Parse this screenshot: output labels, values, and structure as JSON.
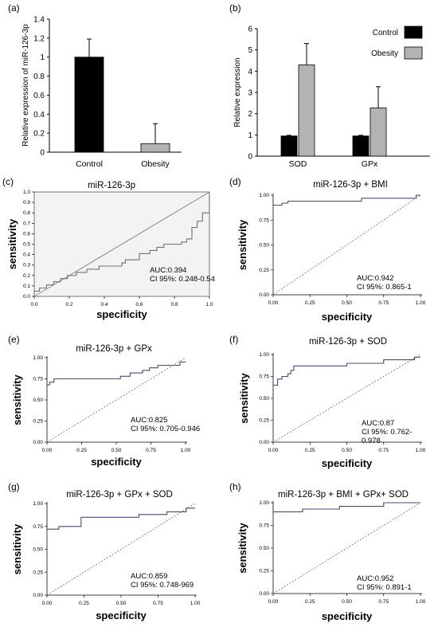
{
  "panels": {
    "a": {
      "label": "(a)"
    },
    "b": {
      "label": "(b)"
    },
    "c": {
      "label": "(c)"
    },
    "d": {
      "label": "(d)"
    },
    "e": {
      "label": "(e)"
    },
    "f": {
      "label": "(f)"
    },
    "g": {
      "label": "(g)"
    },
    "h": {
      "label": "(h)"
    }
  },
  "roc_common": {
    "xlabel": "specificity",
    "ylabel": "sensitivity"
  },
  "colors": {
    "control": "#000000",
    "obesity": "#b3b3b3",
    "roc_line": "#4a4a7a",
    "diag_line": "#7a7a7a",
    "panel_c_bg": "#f3f3f3"
  },
  "chart_data": [
    {
      "panel": "a",
      "type": "bar",
      "categories": [
        "Control",
        "Obesity"
      ],
      "values": [
        1.0,
        0.09
      ],
      "errors": [
        0.19,
        0.21
      ],
      "colors": [
        "#000000",
        "#b3b3b3"
      ],
      "ylabel": "Relative expression of  miR-126-3p",
      "ylim": [
        0,
        1.4
      ],
      "yticks": [
        "0",
        "0.2",
        "0.4",
        "0.6",
        "0.8",
        "1",
        "1.2",
        "1.4"
      ]
    },
    {
      "panel": "b",
      "type": "bar",
      "categories": [
        "SOD",
        "GPx"
      ],
      "series": [
        {
          "name": "Control",
          "values": [
            0.95,
            0.95
          ],
          "errors": [
            0.03,
            0.03
          ],
          "color": "#000000"
        },
        {
          "name": "Obesity",
          "values": [
            4.3,
            2.27
          ],
          "errors": [
            1.0,
            1.0
          ],
          "color": "#b3b3b3"
        }
      ],
      "ylabel": "Relative expression",
      "ylim": [
        0,
        6
      ],
      "yticks": [
        "0",
        "1",
        "2",
        "3",
        "4",
        "5",
        "6"
      ],
      "legend": "top-right"
    },
    {
      "panel": "c",
      "type": "line",
      "title": "miR-126-3p",
      "xticks": [
        "0.0",
        "0.2",
        "0.4",
        "0.6",
        "0.8",
        "1.0"
      ],
      "yticks": [
        "0.0",
        "0.1",
        "0.2",
        "0.3",
        "0.4",
        "0.5",
        "0.6",
        "0.7",
        "0.8",
        "0.9",
        "1.0"
      ],
      "points": [
        [
          0,
          0
        ],
        [
          0,
          0.05
        ],
        [
          0.03,
          0.05
        ],
        [
          0.03,
          0.08
        ],
        [
          0.07,
          0.08
        ],
        [
          0.07,
          0.11
        ],
        [
          0.11,
          0.11
        ],
        [
          0.11,
          0.14
        ],
        [
          0.15,
          0.14
        ],
        [
          0.15,
          0.17
        ],
        [
          0.19,
          0.17
        ],
        [
          0.19,
          0.2
        ],
        [
          0.24,
          0.2
        ],
        [
          0.24,
          0.23
        ],
        [
          0.3,
          0.23
        ],
        [
          0.3,
          0.26
        ],
        [
          0.37,
          0.26
        ],
        [
          0.37,
          0.29
        ],
        [
          0.5,
          0.29
        ],
        [
          0.5,
          0.32
        ],
        [
          0.52,
          0.32
        ],
        [
          0.52,
          0.35
        ],
        [
          0.6,
          0.35
        ],
        [
          0.6,
          0.41
        ],
        [
          0.66,
          0.41
        ],
        [
          0.66,
          0.44
        ],
        [
          0.7,
          0.44
        ],
        [
          0.7,
          0.47
        ],
        [
          0.74,
          0.47
        ],
        [
          0.74,
          0.5
        ],
        [
          0.84,
          0.5
        ],
        [
          0.84,
          0.52
        ],
        [
          0.87,
          0.52
        ],
        [
          0.87,
          0.55
        ],
        [
          0.9,
          0.55
        ],
        [
          0.9,
          0.66
        ],
        [
          0.93,
          0.66
        ],
        [
          0.93,
          0.72
        ],
        [
          0.96,
          0.72
        ],
        [
          0.96,
          0.8
        ],
        [
          1.0,
          0.8
        ],
        [
          1.0,
          1.0
        ]
      ],
      "annotation": [
        "AUC:0.394",
        "CI 95%: 0.248-0.54"
      ]
    },
    {
      "panel": "d",
      "type": "line",
      "title": "miR-126-3p + BMI",
      "xticks": [
        "0.00",
        "0.25",
        "0.50",
        "0.75",
        "1.00"
      ],
      "yticks": [
        "0.00",
        "0.25",
        "0.50",
        "0.75",
        "1.00"
      ],
      "points": [
        [
          0,
          0
        ],
        [
          0,
          0.9
        ],
        [
          0.06,
          0.9
        ],
        [
          0.06,
          0.92
        ],
        [
          0.1,
          0.92
        ],
        [
          0.1,
          0.94
        ],
        [
          0.6,
          0.94
        ],
        [
          0.6,
          0.97
        ],
        [
          0.97,
          0.97
        ],
        [
          0.97,
          1.0
        ],
        [
          1.0,
          1.0
        ]
      ],
      "annotation": [
        "AUC:0.942",
        "CI 95%: 0.865-1"
      ]
    },
    {
      "panel": "e",
      "type": "line",
      "title": "miR-126-3p + GPx",
      "xticks": [
        "0.00",
        "0.25",
        "0.50",
        "0.75",
        "1.00"
      ],
      "yticks": [
        "0.00",
        "0.25",
        "0.50",
        "0.75",
        "1.00"
      ],
      "points": [
        [
          0,
          0
        ],
        [
          0,
          0.68
        ],
        [
          0.02,
          0.68
        ],
        [
          0.02,
          0.71
        ],
        [
          0.05,
          0.71
        ],
        [
          0.05,
          0.75
        ],
        [
          0.53,
          0.75
        ],
        [
          0.53,
          0.78
        ],
        [
          0.6,
          0.78
        ],
        [
          0.6,
          0.82
        ],
        [
          0.69,
          0.82
        ],
        [
          0.69,
          0.85
        ],
        [
          0.74,
          0.85
        ],
        [
          0.74,
          0.88
        ],
        [
          0.8,
          0.88
        ],
        [
          0.8,
          0.91
        ],
        [
          0.96,
          0.91
        ],
        [
          0.96,
          0.95
        ],
        [
          1.0,
          0.95
        ]
      ],
      "annotation": [
        "AUC:0.825",
        "CI 95%: 0.705-0.946"
      ]
    },
    {
      "panel": "f",
      "type": "line",
      "title": "miR-126-3p + SOD",
      "xticks": [
        "0.00",
        "0.25",
        "0.50",
        "0.75",
        "1.00"
      ],
      "yticks": [
        "0.00",
        "0.25",
        "0.50",
        "0.75",
        "1.00"
      ],
      "points": [
        [
          0,
          0
        ],
        [
          0,
          0.65
        ],
        [
          0.03,
          0.65
        ],
        [
          0.03,
          0.72
        ],
        [
          0.06,
          0.72
        ],
        [
          0.06,
          0.75
        ],
        [
          0.1,
          0.75
        ],
        [
          0.1,
          0.78
        ],
        [
          0.12,
          0.78
        ],
        [
          0.12,
          0.82
        ],
        [
          0.14,
          0.82
        ],
        [
          0.14,
          0.87
        ],
        [
          0.5,
          0.87
        ],
        [
          0.5,
          0.9
        ],
        [
          0.75,
          0.9
        ],
        [
          0.75,
          0.94
        ],
        [
          0.96,
          0.94
        ],
        [
          0.96,
          0.97
        ],
        [
          1.0,
          0.97
        ]
      ],
      "annotation": [
        "AUC:0.87",
        "CI 95%: 0.762-",
        "0.978"
      ]
    },
    {
      "panel": "g",
      "type": "line",
      "title": "miR-126-3p + GPx + SOD",
      "xticks": [
        "0.00",
        "0.25",
        "0.50",
        "0.75",
        "1.00"
      ],
      "yticks": [
        "0.00",
        "0.25",
        "0.50",
        "0.75",
        "1.00"
      ],
      "points": [
        [
          0,
          0
        ],
        [
          0,
          0.72
        ],
        [
          0.08,
          0.72
        ],
        [
          0.08,
          0.75
        ],
        [
          0.23,
          0.75
        ],
        [
          0.23,
          0.85
        ],
        [
          0.62,
          0.85
        ],
        [
          0.62,
          0.88
        ],
        [
          0.81,
          0.88
        ],
        [
          0.81,
          0.91
        ],
        [
          0.94,
          0.91
        ],
        [
          0.94,
          0.95
        ],
        [
          1.0,
          0.95
        ]
      ],
      "annotation": [
        "AUC:0.859",
        "CI 95%: 0.748-969"
      ]
    },
    {
      "panel": "h",
      "type": "line",
      "title": "miR-126-3p + BMI + GPx+ SOD",
      "xticks": [
        "0.00",
        "0.25",
        "0.50",
        "0.75",
        "1.00"
      ],
      "yticks": [
        "0.00",
        "0.25",
        "0.50",
        "0.75",
        "1.00"
      ],
      "points": [
        [
          0,
          0
        ],
        [
          0,
          0.9
        ],
        [
          0.2,
          0.9
        ],
        [
          0.2,
          0.93
        ],
        [
          0.45,
          0.93
        ],
        [
          0.45,
          0.96
        ],
        [
          0.75,
          0.96
        ],
        [
          0.75,
          1.0
        ],
        [
          1.0,
          1.0
        ]
      ],
      "annotation": [
        "AUC:0.952",
        "CI 95%: 0.891-1"
      ]
    }
  ]
}
